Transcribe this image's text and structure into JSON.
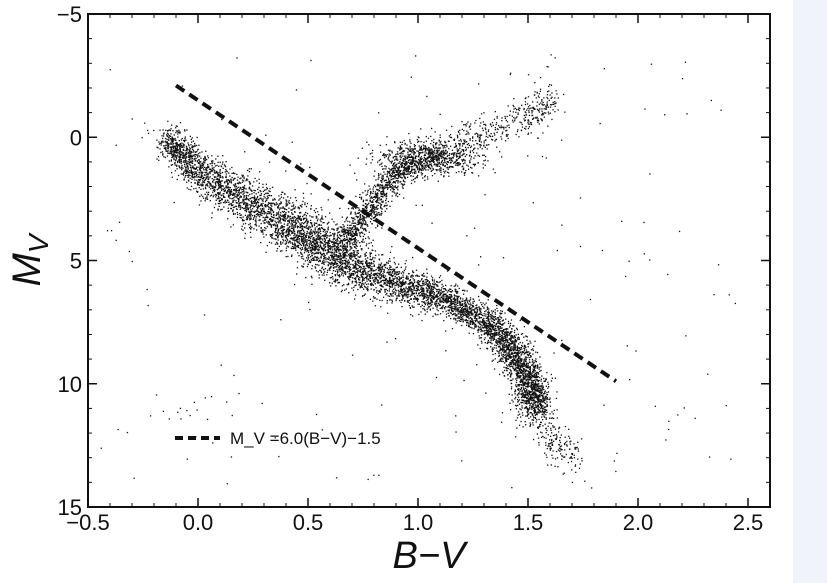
{
  "chart_data": {
    "type": "scatter",
    "title": "",
    "xlabel": "B−V",
    "ylabel": "M_V",
    "xlim": [
      -0.5,
      2.6
    ],
    "ylim": [
      15,
      -5
    ],
    "y_inverted": true,
    "x_ticks": [
      -0.5,
      0.0,
      0.5,
      1.0,
      1.5,
      2.0,
      2.5
    ],
    "x_tick_labels": [
      "−0.5",
      "0.0",
      "0.5",
      "1.0",
      "1.5",
      "2.0",
      "2.5"
    ],
    "y_ticks": [
      -5,
      0,
      5,
      10,
      15
    ],
    "y_tick_labels": [
      "−5",
      "0",
      "5",
      "10",
      "15"
    ],
    "grid": false,
    "legend_position": "bottom-left",
    "legend": [
      {
        "label": "M_V =6.0(B−V)−1.5",
        "style": "dashed",
        "color": "#111111"
      }
    ],
    "series": [
      {
        "kind": "points",
        "color": "#111111",
        "regions": [
          {
            "region": "main-sequence",
            "count": 6500,
            "anchors": [
              [
                -0.15,
                0.0
              ],
              [
                0.0,
                1.4
              ],
              [
                0.2,
                2.5
              ],
              [
                0.4,
                3.5
              ],
              [
                0.55,
                4.3
              ],
              [
                0.7,
                5.2
              ],
              [
                0.9,
                5.9
              ],
              [
                1.1,
                6.5
              ],
              [
                1.3,
                7.4
              ],
              [
                1.42,
                8.5
              ],
              [
                1.5,
                9.8
              ],
              [
                1.55,
                11.0
              ]
            ],
            "width_mag": [
              0.6,
              0.9,
              1.1,
              1.2,
              1.3,
              1.1,
              0.8,
              0.7,
              0.7,
              0.8,
              0.8,
              0.9
            ]
          },
          {
            "region": "subgiant-branch",
            "count": 900,
            "anchors": [
              [
                0.65,
                4.5
              ],
              [
                0.75,
                3.2
              ],
              [
                0.85,
                2.0
              ],
              [
                0.95,
                1.0
              ]
            ],
            "width_mag": [
              0.5,
              0.5,
              0.5,
              0.5
            ]
          },
          {
            "region": "red-clump",
            "count": 700,
            "center": [
              1.05,
              0.8
            ],
            "spread": [
              0.12,
              0.35
            ]
          },
          {
            "region": "red-giant-branch",
            "count": 550,
            "anchors": [
              [
                0.9,
                1.5
              ],
              [
                1.1,
                0.5
              ],
              [
                1.3,
                -0.2
              ],
              [
                1.5,
                -0.8
              ],
              [
                1.6,
                -1.5
              ]
            ],
            "width_mag": [
              0.7,
              0.8,
              0.8,
              0.8,
              0.9
            ]
          },
          {
            "region": "lower-main-sequence-tail",
            "count": 250,
            "anchors": [
              [
                1.45,
                10.5
              ],
              [
                1.55,
                11.5
              ],
              [
                1.65,
                12.5
              ],
              [
                1.7,
                13.2
              ]
            ],
            "width_mag": [
              0.7,
              0.8,
              0.9,
              0.9
            ]
          },
          {
            "region": "white-dwarf-group",
            "count": 14,
            "center": [
              -0.05,
              11.0
            ],
            "spread": [
              0.12,
              0.35
            ]
          },
          {
            "region": "field-scatter",
            "count": 180,
            "xrange": [
              -0.45,
              2.45
            ],
            "yrange": [
              -3.5,
              14.5
            ]
          }
        ]
      },
      {
        "kind": "line",
        "style": "dashed",
        "color": "#111111",
        "equation": "M_V = 6.0(B-V) - 1.5",
        "x": [
          -0.1,
          1.9
        ],
        "y": [
          -2.1,
          9.9
        ]
      }
    ]
  }
}
